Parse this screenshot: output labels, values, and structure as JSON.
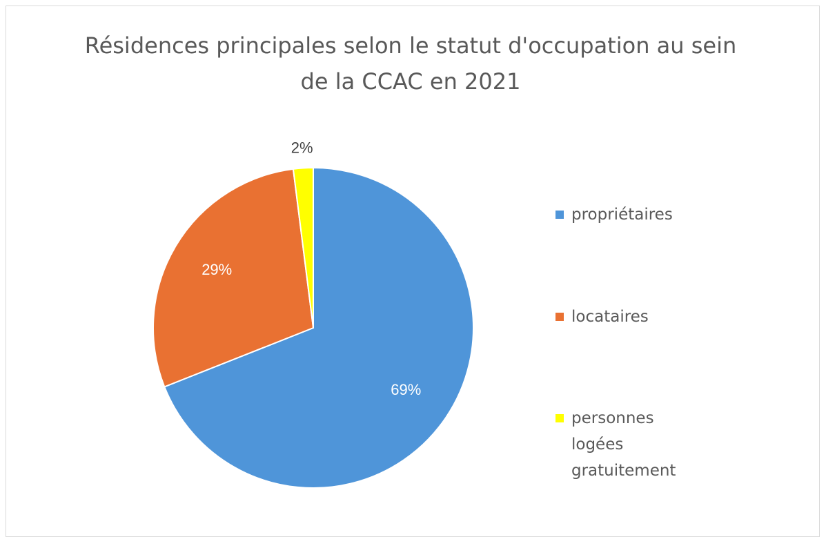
{
  "chart_data": {
    "type": "pie",
    "title": "Résidences principales selon le statut d'occupation au sein de la CCAC en 2021",
    "categories": [
      "propriétaires",
      "locataires",
      "personnes logées gratuitement"
    ],
    "values": [
      69,
      29,
      2
    ],
    "value_labels": [
      "69%",
      "29%",
      "2%"
    ],
    "colors": [
      "#4f95d9",
      "#e97132",
      "#ffff00"
    ],
    "legend": "right"
  }
}
